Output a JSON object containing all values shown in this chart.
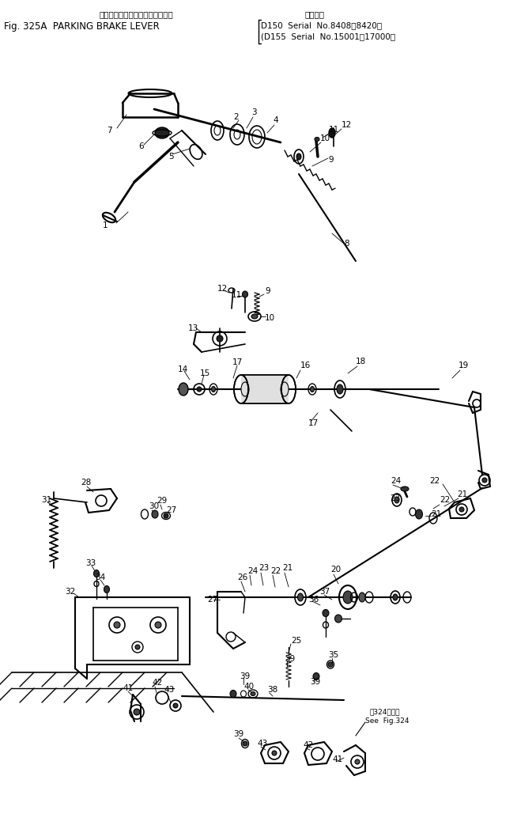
{
  "bg_color": "#ffffff",
  "line_color": "#000000",
  "figsize": [
    6.54,
    10.29
  ],
  "dpi": 100,
  "header": {
    "jp_title": "パーキング　ブレーキ　レバー（",
    "en_title": "Fig. 325A  PARKING BRAKE LEVER",
    "applicable": "適用号機",
    "serial1": "D150  Serial  No.8408～8420）",
    "serial2": "(D155  Serial  No.15001～17000）",
    "see_fig_jp": "第324図参照",
    "see_fig_en": "See  Fig.324"
  }
}
